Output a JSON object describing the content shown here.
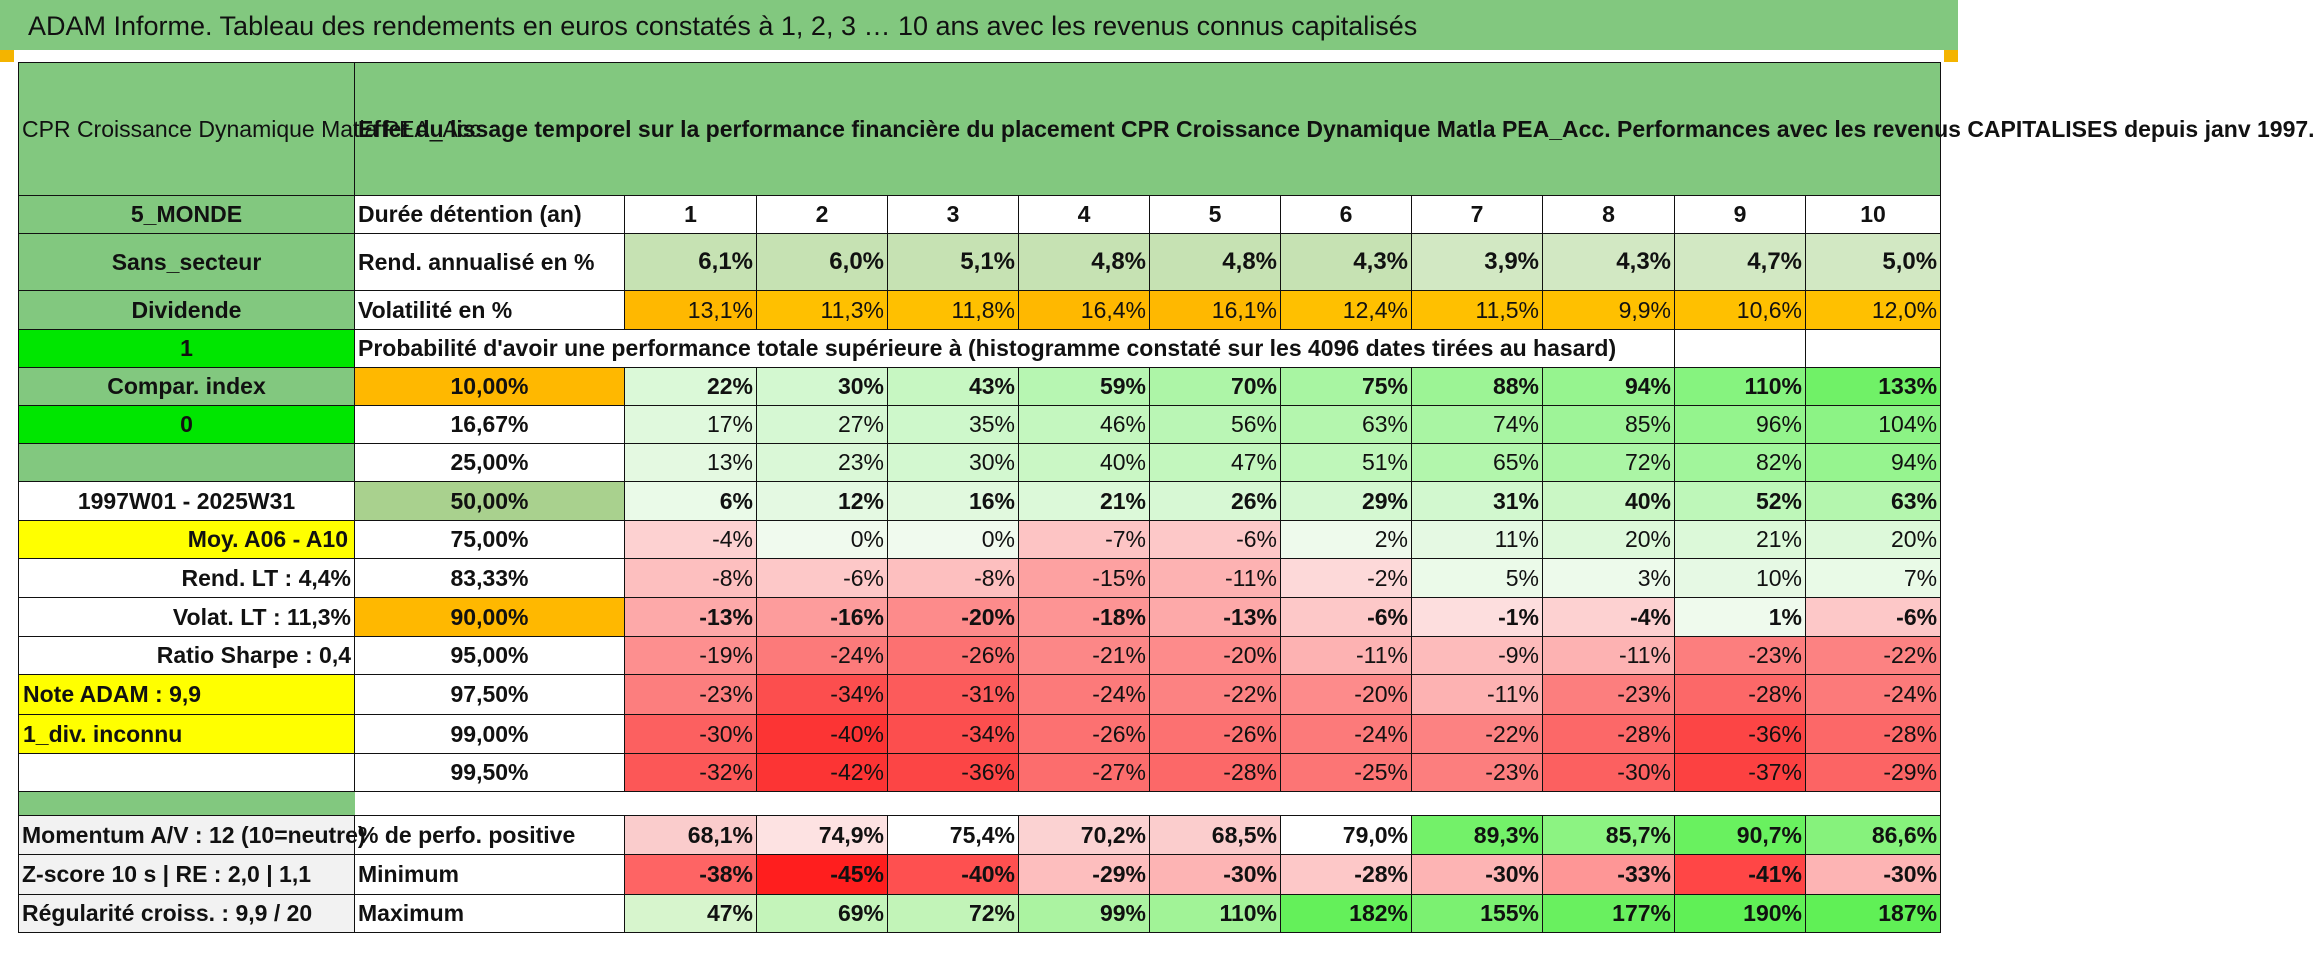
{
  "banner": "ADAM Informe. Tableau des rendements en euros constatés à 1, 2, 3 … 10 ans avec les revenus connus capitalisés",
  "fund_name": "CPR Croissance Dynamique Matla PEA_Acc",
  "title": "Effet du lissage temporel sur la performance financière du placement CPR Croissance Dynamique Matla PEA_Acc. Performances avec les revenus CAPITALISES depuis janv 1997.",
  "left": {
    "zone": "5_MONDE",
    "secteur": "Sans_secteur",
    "dividende": "Dividende",
    "div_value": "1",
    "compar": "Compar. index",
    "compar_value": "0",
    "period": "1997W01 - 2025W31",
    "moy": "Moy. A06 - A10",
    "rend_lt": "Rend. LT :    4,4%",
    "volat_lt": "Volat. LT :    11,3%",
    "sharpe": "Ratio Sharpe :    0,4",
    "note": "Note ADAM : 9,9",
    "div_inconnu": "1_div. inconnu"
  },
  "header": {
    "label": "Durée détention (an)",
    "years": [
      "1",
      "2",
      "3",
      "4",
      "5",
      "6",
      "7",
      "8",
      "9",
      "10"
    ]
  },
  "rend": {
    "label": "Rend. annualisé en %",
    "values": [
      "6,1%",
      "6,0%",
      "5,1%",
      "4,8%",
      "4,8%",
      "4,3%",
      "3,9%",
      "4,3%",
      "4,7%",
      "5,0%"
    ]
  },
  "vol": {
    "label": "Volatilité en %",
    "values": [
      "13,1%",
      "11,3%",
      "11,8%",
      "16,4%",
      "16,1%",
      "12,4%",
      "11,5%",
      "9,9%",
      "10,6%",
      "12,0%"
    ]
  },
  "prob_title": "Probabilité d'avoir une performance totale supérieure à (histogramme constaté sur les 4096 dates tirées au hasard)",
  "quantiles": [
    {
      "q": "10,00%",
      "values": [
        "22%",
        "30%",
        "43%",
        "59%",
        "70%",
        "75%",
        "88%",
        "94%",
        "110%",
        "133%"
      ]
    },
    {
      "q": "16,67%",
      "values": [
        "17%",
        "27%",
        "35%",
        "46%",
        "56%",
        "63%",
        "74%",
        "85%",
        "96%",
        "104%"
      ]
    },
    {
      "q": "25,00%",
      "values": [
        "13%",
        "23%",
        "30%",
        "40%",
        "47%",
        "51%",
        "65%",
        "72%",
        "82%",
        "94%"
      ]
    },
    {
      "q": "50,00%",
      "values": [
        "6%",
        "12%",
        "16%",
        "21%",
        "26%",
        "29%",
        "31%",
        "40%",
        "52%",
        "63%"
      ]
    },
    {
      "q": "75,00%",
      "values": [
        "-4%",
        "0%",
        "0%",
        "-7%",
        "-6%",
        "2%",
        "11%",
        "20%",
        "21%",
        "20%"
      ]
    },
    {
      "q": "83,33%",
      "values": [
        "-8%",
        "-6%",
        "-8%",
        "-15%",
        "-11%",
        "-2%",
        "5%",
        "3%",
        "10%",
        "7%"
      ]
    },
    {
      "q": "90,00%",
      "values": [
        "-13%",
        "-16%",
        "-20%",
        "-18%",
        "-13%",
        "-6%",
        "-1%",
        "-4%",
        "1%",
        "-6%"
      ]
    },
    {
      "q": "95,00%",
      "values": [
        "-19%",
        "-24%",
        "-26%",
        "-21%",
        "-20%",
        "-11%",
        "-9%",
        "-11%",
        "-23%",
        "-22%"
      ]
    },
    {
      "q": "97,50%",
      "values": [
        "-23%",
        "-34%",
        "-31%",
        "-24%",
        "-22%",
        "-20%",
        "-11%",
        "-23%",
        "-28%",
        "-24%"
      ]
    },
    {
      "q": "99,00%",
      "values": [
        "-30%",
        "-40%",
        "-34%",
        "-26%",
        "-26%",
        "-24%",
        "-22%",
        "-28%",
        "-36%",
        "-28%"
      ]
    },
    {
      "q": "99,50%",
      "values": [
        "-32%",
        "-42%",
        "-36%",
        "-27%",
        "-28%",
        "-25%",
        "-23%",
        "-30%",
        "-37%",
        "-29%"
      ]
    }
  ],
  "bottom": [
    {
      "left": "Momentum A/V : 12 (10=neutre)",
      "label": "% de perfo. positive",
      "values": [
        "68,1%",
        "74,9%",
        "75,4%",
        "70,2%",
        "68,5%",
        "79,0%",
        "89,3%",
        "85,7%",
        "90,7%",
        "86,6%"
      ]
    },
    {
      "left": "Z-score 10 s | RE : 2,0 | 1,1",
      "label": "Minimum",
      "values": [
        "-38%",
        "-45%",
        "-40%",
        "-29%",
        "-30%",
        "-28%",
        "-30%",
        "-33%",
        "-41%",
        "-30%"
      ]
    },
    {
      "left": "Régularité croiss. : 9,9 / 20",
      "label": "Maximum",
      "values": [
        "47%",
        "69%",
        "72%",
        "99%",
        "110%",
        "182%",
        "155%",
        "177%",
        "190%",
        "187%"
      ]
    }
  ],
  "colors": {
    "banner_green": "#82c87f",
    "bright_green": "#00e600",
    "orange": "#ffb800",
    "yellow": "#ffff00",
    "red_text": "#e0001a"
  }
}
